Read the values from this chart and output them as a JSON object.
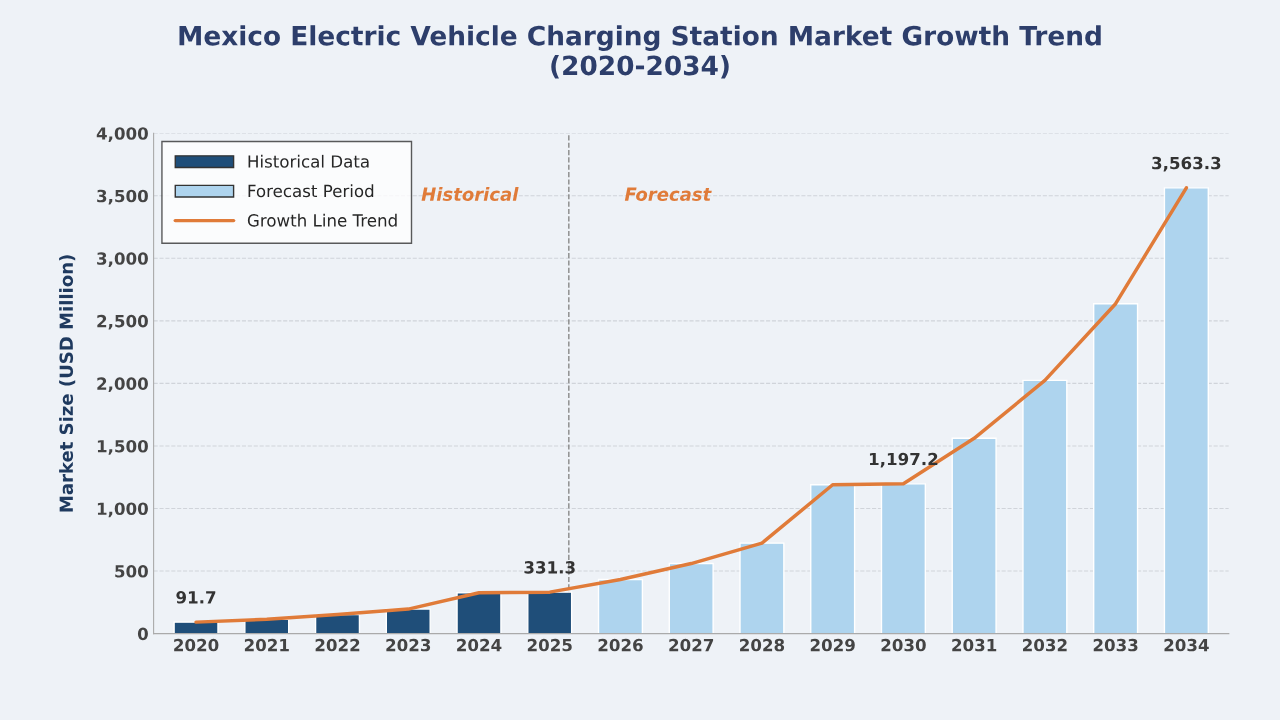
{
  "chart_data": {
    "type": "bar",
    "title": "Mexico Electric Vehicle Charging Station Market Growth Trend\n(2020-2034)",
    "ylabel": "Market Size (USD Million)",
    "categories": [
      "2020",
      "2021",
      "2022",
      "2023",
      "2024",
      "2025",
      "2026",
      "2027",
      "2028",
      "2029",
      "2030",
      "2031",
      "2032",
      "2033",
      "2034"
    ],
    "series": [
      {
        "name": "Historical Data",
        "color": "#1f4e79",
        "values": [
          91.7,
          114,
          152,
          196,
          327,
          331.3,
          null,
          null,
          null,
          null,
          null,
          null,
          null,
          null,
          null
        ]
      },
      {
        "name": "Forecast Period",
        "color": "#aed4ee",
        "values": [
          null,
          null,
          null,
          null,
          null,
          null,
          433,
          560,
          723,
          1190,
          1197.2,
          1561,
          2024,
          2637,
          3563.3
        ]
      },
      {
        "name": "Growth Line Trend",
        "type": "line",
        "color": "#e07b39",
        "values": [
          91.7,
          114,
          152,
          196,
          327,
          331.3,
          433,
          560,
          723,
          1190,
          1197.2,
          1561,
          2024,
          2637,
          3563.3
        ],
        "value_labels": [
          "91.7",
          null,
          null,
          null,
          null,
          "331.3",
          null,
          null,
          null,
          null,
          "1,197.2",
          null,
          null,
          null,
          "3,563.3"
        ]
      }
    ],
    "ylim": [
      0,
      4000
    ],
    "yticks": [
      0,
      500,
      {
        "value": 1000,
        "label": "1,000"
      },
      {
        "value": 1500,
        "label": "1,500"
      },
      {
        "value": 2000,
        "label": "2,000"
      },
      {
        "value": 2500,
        "label": "2,500"
      },
      {
        "value": 3000,
        "label": "3,000"
      },
      {
        "value": 3500,
        "label": "3,500"
      },
      {
        "value": 4000,
        "label": "4,000"
      }
    ],
    "ref_lines": [
      {
        "axis": "x",
        "value": "2025",
        "color": "#888888",
        "line_style": "dashed"
      }
    ],
    "annotations": [
      "Historical",
      "Forecast"
    ],
    "grid": "y",
    "legend": "top left"
  }
}
